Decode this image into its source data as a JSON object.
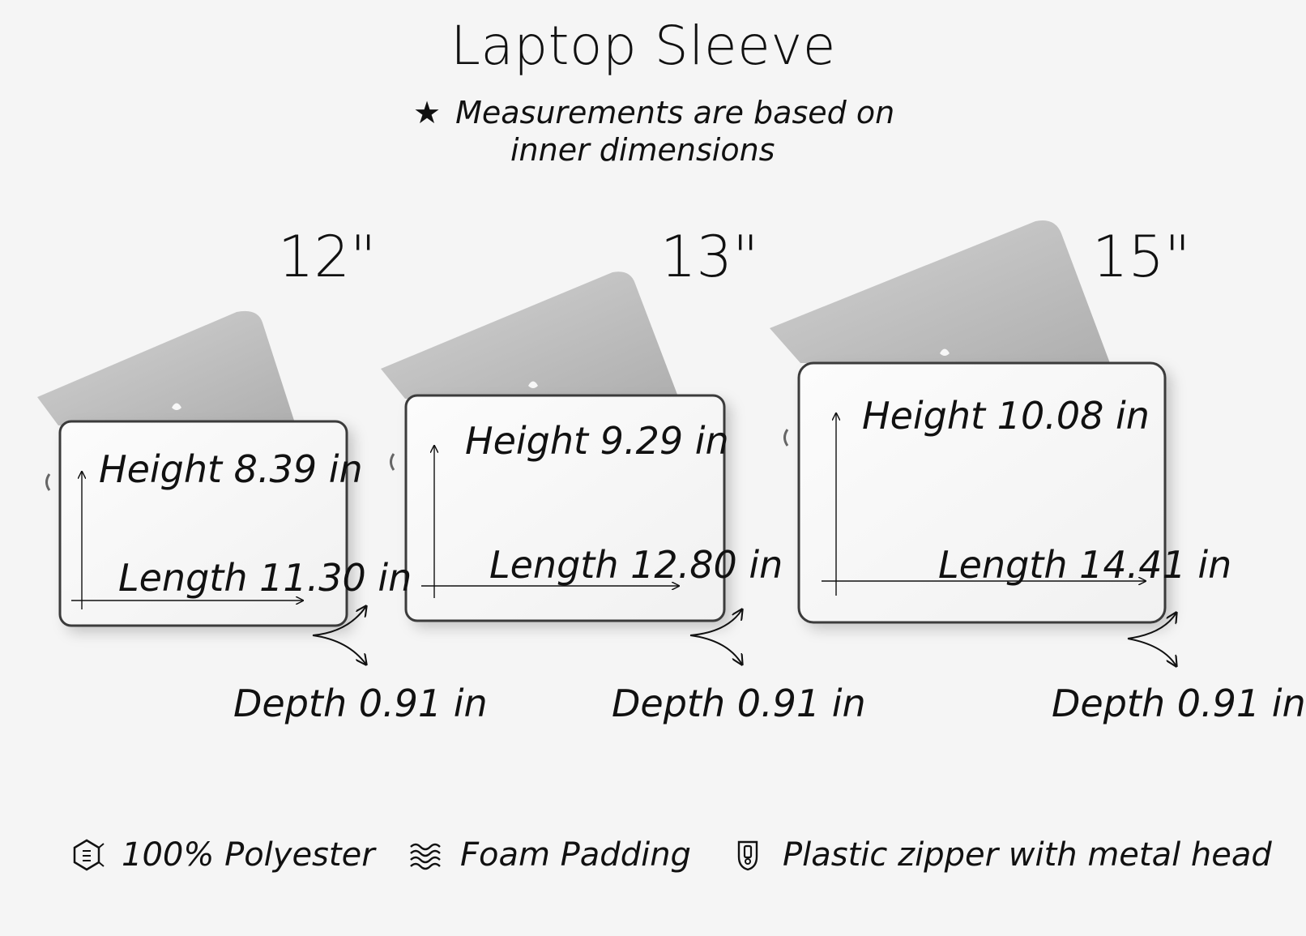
{
  "title": "Laptop Sleeve",
  "note": {
    "star": "★",
    "line1": "Measurements are based on",
    "line2": "inner dimensions"
  },
  "sizes": [
    {
      "size": "12\"",
      "height": "Height 8.39 in",
      "length": "Length 11.30 in",
      "depth": "Depth 0.91 in"
    },
    {
      "size": "13\"",
      "height": "Height 9.29 in",
      "length": "Length 12.80 in",
      "depth": "Depth 0.91 in"
    },
    {
      "size": "15\"",
      "height": "Height 10.08 in",
      "length": "Length 14.41 in",
      "depth": "Depth 0.91 in"
    }
  ],
  "features": [
    {
      "icon": "fabric-icon",
      "label": "100% Polyester"
    },
    {
      "icon": "foam-icon",
      "label": "Foam Padding"
    },
    {
      "icon": "zipper-icon",
      "label": "Plastic zipper with metal head"
    }
  ],
  "colors": {
    "background": "#f5f5f5",
    "ink": "#111111",
    "laptop": "#bdbdbd",
    "sleeve": "#f7f7f7"
  }
}
